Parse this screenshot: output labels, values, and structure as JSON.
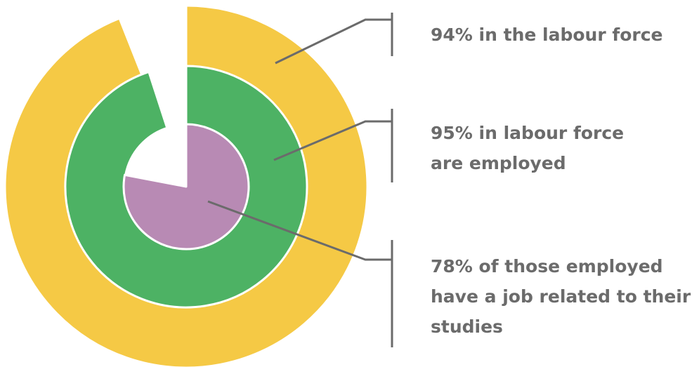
{
  "chart_data": {
    "type": "pie",
    "subtype": "nested-radial-rings",
    "rings": [
      {
        "value": 94,
        "unit": "%",
        "color": "#F5C945",
        "label_lines": [
          "94% in the labour force"
        ]
      },
      {
        "value": 95,
        "unit": "%",
        "color": "#4DB264",
        "label_lines": [
          "95% in labour force",
          "are employed"
        ]
      },
      {
        "value": 78,
        "unit": "%",
        "color": "#B88AB4",
        "label_lines": [
          "78% of those employed",
          "have a job related to their",
          "studies"
        ]
      }
    ],
    "title": "",
    "legend": "none"
  },
  "colors": {
    "leader_line": "#6b6b6b",
    "label_text": "#6b6b6b",
    "background": "#ffffff"
  }
}
